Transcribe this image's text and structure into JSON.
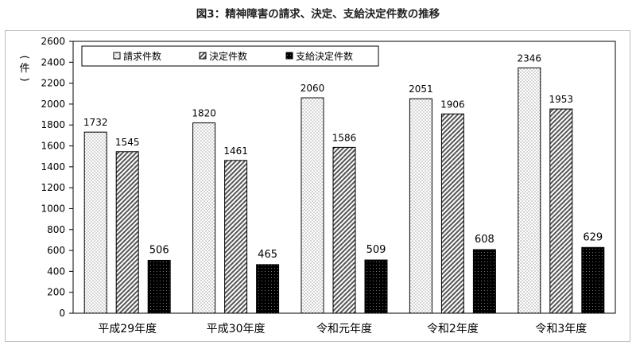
{
  "title": "図3：精神障害の請求、決定、支給決定件数の推移",
  "chart_data": {
    "type": "bar",
    "ylabel": "(件)",
    "ylim": [
      0,
      2600
    ],
    "yticks": [
      0,
      200,
      400,
      600,
      800,
      1000,
      1200,
      1400,
      1600,
      1800,
      2000,
      2200,
      2400,
      2600
    ],
    "categories": [
      "平成29年度",
      "平成30年度",
      "令和元年度",
      "令和2年度",
      "令和3年度"
    ],
    "series": [
      {
        "name": "請求件数",
        "values": [
          1732,
          1820,
          2060,
          2051,
          2346
        ],
        "pattern": "dots"
      },
      {
        "name": "決定件数",
        "values": [
          1545,
          1461,
          1586,
          1906,
          1953
        ],
        "pattern": "hatch"
      },
      {
        "name": "支給決定件数",
        "values": [
          506,
          465,
          509,
          608,
          629
        ],
        "pattern": "solid-dark"
      }
    ],
    "legend": "top-left",
    "grid": false
  }
}
